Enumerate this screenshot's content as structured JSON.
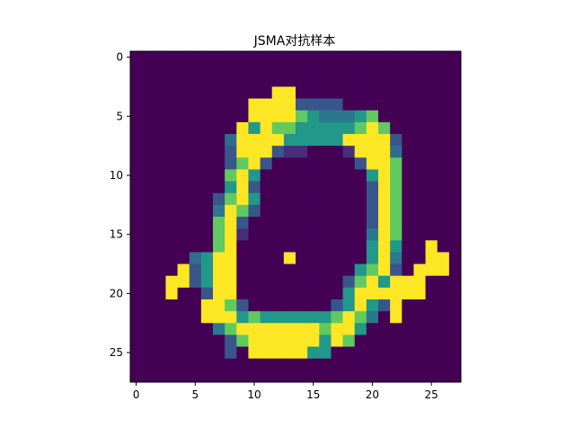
{
  "chart_data": {
    "type": "heatmap",
    "title": "JSMA对抗样本",
    "xlabel": "",
    "ylabel": "",
    "xlim": [
      -0.5,
      27.5
    ],
    "ylim": [
      27.5,
      -0.5
    ],
    "xticks": [
      0,
      5,
      10,
      15,
      20,
      25
    ],
    "yticks": [
      0,
      5,
      10,
      15,
      20,
      25
    ],
    "xtick_labels": [
      "0",
      "5",
      "10",
      "15",
      "20",
      "25"
    ],
    "ytick_labels": [
      "0",
      "5",
      "10",
      "15",
      "20",
      "25"
    ],
    "grid": false,
    "colormap": "viridis",
    "value_range": [
      0,
      1
    ],
    "colors": {
      "background": "#440154",
      "low": "#46337e",
      "mid": "#3b528b",
      "teal": "#21918c",
      "green": "#35b779",
      "lime": "#90d743",
      "yellow": "#fde725"
    },
    "grid_shape": [
      28,
      28
    ],
    "rows": [
      [
        0,
        0,
        0,
        0,
        0,
        0,
        0,
        0,
        0,
        0,
        0,
        0,
        0,
        0,
        0,
        0,
        0,
        0,
        0,
        0,
        0,
        0,
        0,
        0,
        0,
        0,
        0,
        0
      ],
      [
        0,
        0,
        0,
        0,
        0,
        0,
        0,
        0,
        0,
        0,
        0,
        0,
        0,
        0,
        0,
        0,
        0,
        0,
        0,
        0,
        0,
        0,
        0,
        0,
        0,
        0,
        0,
        0
      ],
      [
        0,
        0,
        0,
        0,
        0,
        0,
        0,
        0,
        0,
        0,
        0,
        0,
        0,
        0,
        0,
        0,
        0,
        0,
        0,
        0,
        0,
        0,
        0,
        0,
        0,
        0,
        0,
        0
      ],
      [
        0,
        0,
        0,
        0,
        0,
        0,
        0,
        0,
        0,
        0,
        0,
        0,
        1,
        1,
        0,
        0,
        0,
        0,
        0,
        0,
        0,
        0,
        0,
        0,
        0,
        0,
        0,
        0
      ],
      [
        0,
        0,
        0,
        0,
        0,
        0,
        0,
        0,
        0,
        0,
        1,
        1,
        1,
        1,
        0.3,
        0.3,
        0.3,
        0.3,
        0,
        0,
        0,
        0,
        0,
        0,
        0,
        0,
        0,
        0
      ],
      [
        0,
        0,
        0,
        0,
        0,
        0,
        0,
        0,
        0,
        0,
        1,
        1,
        1,
        1,
        0.85,
        0.6,
        0.45,
        0.45,
        0.45,
        0.6,
        0.85,
        0,
        0,
        0,
        0,
        0,
        0,
        0
      ],
      [
        0,
        0,
        0,
        0,
        0,
        0,
        0,
        0,
        0,
        1,
        0.6,
        1,
        0.85,
        0.85,
        0.6,
        0.6,
        0.6,
        0.6,
        0.6,
        0.85,
        1,
        0.85,
        0,
        0,
        0,
        0,
        0,
        0
      ],
      [
        0,
        0,
        0,
        0,
        0,
        0,
        0,
        0,
        0.4,
        1,
        1,
        1,
        1,
        0.6,
        0.6,
        0.6,
        0.6,
        0.6,
        1,
        1,
        1,
        1,
        0.3,
        0,
        0,
        0,
        0,
        0
      ],
      [
        0,
        0,
        0,
        0,
        0,
        0,
        0,
        0,
        0.3,
        1,
        1,
        1,
        0.3,
        0.15,
        0.15,
        0,
        0,
        0,
        0.15,
        1,
        1,
        1,
        0.4,
        0,
        0,
        0,
        0,
        0
      ],
      [
        0,
        0,
        0,
        0,
        0,
        0,
        0,
        0,
        0.3,
        0.85,
        1,
        0.3,
        0,
        0,
        0,
        0,
        0,
        0,
        0,
        0.3,
        1,
        1,
        0.85,
        0,
        0,
        0,
        0,
        0
      ],
      [
        0,
        0,
        0,
        0,
        0,
        0,
        0,
        0,
        0.85,
        1,
        0.6,
        0,
        0,
        0,
        0,
        0,
        0,
        0,
        0,
        0,
        0.6,
        1,
        0.85,
        0,
        0,
        0,
        0,
        0
      ],
      [
        0,
        0,
        0,
        0,
        0,
        0,
        0,
        0,
        0.6,
        1,
        0.3,
        0,
        0,
        0,
        0,
        0,
        0,
        0,
        0,
        0,
        0.3,
        1,
        0.85,
        0,
        0,
        0,
        0,
        0
      ],
      [
        0,
        0,
        0,
        0,
        0,
        0,
        0,
        0.3,
        0.85,
        1,
        0.6,
        0,
        0,
        0,
        0,
        0,
        0,
        0,
        0,
        0,
        0.3,
        1,
        0.85,
        0,
        0,
        0,
        0,
        0
      ],
      [
        0,
        0,
        0,
        0,
        0,
        0,
        0,
        0.45,
        1,
        0.85,
        0.3,
        0,
        0,
        0,
        0,
        0,
        0,
        0,
        0,
        0,
        0.3,
        1,
        0.85,
        0,
        0,
        0,
        0,
        0
      ],
      [
        0,
        0,
        0,
        0,
        0,
        0,
        0,
        0.85,
        1,
        0.3,
        0,
        0,
        0,
        0,
        0,
        0,
        0,
        0,
        0,
        0,
        0.3,
        1,
        0.85,
        0,
        0,
        0,
        0,
        0
      ],
      [
        0,
        0,
        0,
        0,
        0,
        0,
        0,
        0.85,
        1,
        0.15,
        0,
        0,
        0,
        0,
        0,
        0,
        0,
        0,
        0,
        0,
        0.45,
        1,
        0.85,
        0,
        0,
        0,
        0,
        0
      ],
      [
        0,
        0,
        0,
        0,
        0,
        0,
        0,
        0.85,
        1,
        0,
        0,
        0,
        0,
        0,
        0,
        0,
        0,
        0,
        0,
        0,
        0.6,
        1,
        0.6,
        0,
        0,
        1,
        0,
        0
      ],
      [
        0,
        0,
        0,
        0,
        0,
        0.4,
        0.6,
        1,
        1,
        0,
        0,
        0,
        0,
        1,
        0,
        0,
        0,
        0,
        0,
        0,
        0.6,
        1,
        0.45,
        0,
        0,
        1,
        1,
        0
      ],
      [
        0,
        0,
        0,
        0,
        1,
        0.3,
        0.6,
        1,
        1,
        0,
        0,
        0,
        0,
        0,
        0,
        0,
        0,
        0,
        0,
        0.6,
        0.85,
        1,
        0.3,
        0,
        1,
        1,
        1,
        0
      ],
      [
        0,
        0,
        0,
        1,
        1,
        0.3,
        0.6,
        1,
        1,
        0,
        0,
        0,
        0,
        0,
        0,
        0,
        0,
        0,
        0.3,
        0.85,
        1,
        0.6,
        1,
        1,
        1,
        0,
        0,
        0
      ],
      [
        0,
        0,
        0,
        1,
        0,
        0,
        0.3,
        1,
        1,
        0,
        0,
        0,
        0,
        0,
        0,
        0,
        0,
        0,
        0.6,
        1,
        1,
        1,
        1,
        1,
        1,
        0,
        0,
        0
      ],
      [
        0,
        0,
        0,
        0,
        0,
        0,
        1,
        1,
        0.85,
        0.3,
        0,
        0,
        0,
        0,
        0,
        0,
        0,
        0.3,
        0.6,
        1,
        0.6,
        0.3,
        1,
        0,
        0,
        0,
        0,
        0
      ],
      [
        0,
        0,
        0,
        0,
        0,
        0,
        1,
        1,
        1,
        0.6,
        0.85,
        0.6,
        0.6,
        0.6,
        0.6,
        0.6,
        0.6,
        0.85,
        1,
        0.85,
        0.45,
        0,
        1,
        0,
        0,
        0,
        0,
        0
      ],
      [
        0,
        0,
        0,
        0,
        0,
        0,
        0,
        0.45,
        0.85,
        1,
        1,
        1,
        1,
        1,
        1,
        1,
        0.85,
        1,
        1,
        0.6,
        0,
        0,
        0,
        0,
        0,
        0,
        0,
        0
      ],
      [
        0,
        0,
        0,
        0,
        0,
        0,
        0,
        0,
        0.3,
        0.85,
        1,
        1,
        1,
        1,
        1,
        1,
        0.6,
        1,
        0.85,
        0,
        0,
        0,
        0,
        0,
        0,
        0,
        0,
        0
      ],
      [
        0,
        0,
        0,
        0,
        0,
        0,
        0,
        0,
        0.3,
        0,
        1,
        1,
        1,
        1,
        1,
        0.6,
        0.6,
        0,
        0,
        0,
        0,
        0,
        0,
        0,
        0,
        0,
        0,
        0
      ],
      [
        0,
        0,
        0,
        0,
        0,
        0,
        0,
        0,
        0,
        0,
        0,
        0,
        0,
        0,
        0,
        0,
        0,
        0,
        0,
        0,
        0,
        0,
        0,
        0,
        0,
        0,
        0,
        0
      ],
      [
        0,
        0,
        0,
        0,
        0,
        0,
        0,
        0,
        0,
        0,
        0,
        0,
        0,
        0,
        0,
        0,
        0,
        0,
        0,
        0,
        0,
        0,
        0,
        0,
        0,
        0,
        0,
        0
      ]
    ]
  }
}
